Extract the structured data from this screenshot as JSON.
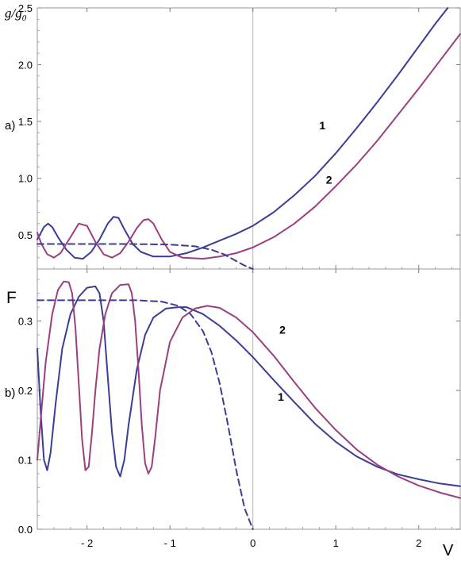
{
  "chart_data": [
    {
      "type": "line",
      "panel_label": "a)",
      "ylabel_main": "g/g",
      "ylabel_sub": "0",
      "xlim": [
        -2.6,
        2.5
      ],
      "ylim": [
        0.2,
        2.5
      ],
      "yticks": [
        0.5,
        1.0,
        1.5,
        2.0,
        2.5
      ],
      "ytick_labels": [
        "0.5",
        "1.0",
        "1.5",
        "2.0",
        "2.5"
      ],
      "series": [
        {
          "name": "1",
          "color": "#3b3d96",
          "dash": false,
          "x": [
            -2.6,
            -2.52,
            -2.47,
            -2.42,
            -2.35,
            -2.25,
            -2.15,
            -2.05,
            -1.95,
            -1.85,
            -1.75,
            -1.68,
            -1.62,
            -1.55,
            -1.45,
            -1.35,
            -1.2,
            -1.0,
            -0.8,
            -0.6,
            -0.4,
            -0.2,
            0.0,
            0.25,
            0.5,
            0.75,
            1.0,
            1.25,
            1.5,
            1.75,
            2.0,
            2.2,
            2.35
          ],
          "y": [
            0.46,
            0.57,
            0.6,
            0.57,
            0.48,
            0.37,
            0.3,
            0.29,
            0.35,
            0.46,
            0.6,
            0.66,
            0.65,
            0.55,
            0.42,
            0.35,
            0.31,
            0.31,
            0.34,
            0.39,
            0.45,
            0.51,
            0.58,
            0.7,
            0.85,
            1.02,
            1.22,
            1.44,
            1.67,
            1.91,
            2.16,
            2.36,
            2.5
          ]
        },
        {
          "name": "2",
          "color": "#9b3f7e",
          "dash": false,
          "x": [
            -2.6,
            -2.55,
            -2.48,
            -2.4,
            -2.32,
            -2.2,
            -2.1,
            -2.0,
            -1.9,
            -1.8,
            -1.7,
            -1.6,
            -1.5,
            -1.4,
            -1.32,
            -1.26,
            -1.2,
            -1.1,
            -1.0,
            -0.85,
            -0.6,
            -0.4,
            -0.2,
            0.0,
            0.25,
            0.5,
            0.75,
            1.0,
            1.25,
            1.5,
            1.75,
            2.0,
            2.25,
            2.5
          ],
          "y": [
            0.52,
            0.42,
            0.33,
            0.3,
            0.34,
            0.48,
            0.6,
            0.58,
            0.44,
            0.33,
            0.3,
            0.34,
            0.44,
            0.56,
            0.63,
            0.64,
            0.6,
            0.46,
            0.35,
            0.3,
            0.29,
            0.31,
            0.34,
            0.39,
            0.48,
            0.6,
            0.75,
            0.93,
            1.12,
            1.33,
            1.56,
            1.79,
            2.03,
            2.27
          ]
        },
        {
          "name": "",
          "color": "#3b3d96",
          "dash": true,
          "x": [
            -2.6,
            -2.0,
            -1.5,
            -1.0,
            -0.7,
            -0.5,
            -0.35,
            -0.2,
            -0.1,
            0.0
          ],
          "y": [
            0.42,
            0.42,
            0.42,
            0.415,
            0.4,
            0.37,
            0.33,
            0.27,
            0.23,
            0.2
          ]
        }
      ],
      "annotations": [
        {
          "text": "1",
          "x": 0.8,
          "y": 1.43
        },
        {
          "text": "2",
          "x": 0.88,
          "y": 0.95
        }
      ]
    },
    {
      "type": "line",
      "panel_label": "b)",
      "ylabel": "F",
      "xlabel": "V",
      "xlim": [
        -2.6,
        2.5
      ],
      "ylim": [
        0.0,
        0.375
      ],
      "xticks": [
        -2,
        -1,
        0,
        1,
        2
      ],
      "xtick_labels": [
        "- 2",
        "- 1",
        "0",
        "1",
        "2"
      ],
      "yticks": [
        0.0,
        0.1,
        0.2,
        0.3
      ],
      "ytick_labels": [
        "0.0",
        "0.1",
        "0.2",
        "0.3"
      ],
      "series": [
        {
          "name": "1",
          "color": "#3b3d96",
          "dash": false,
          "x": [
            -2.6,
            -2.56,
            -2.52,
            -2.48,
            -2.44,
            -2.38,
            -2.3,
            -2.2,
            -2.1,
            -2.0,
            -1.9,
            -1.85,
            -1.8,
            -1.75,
            -1.7,
            -1.65,
            -1.6,
            -1.55,
            -1.5,
            -1.4,
            -1.3,
            -1.2,
            -1.05,
            -0.9,
            -0.8,
            -0.6,
            -0.4,
            -0.2,
            0.0,
            0.25,
            0.5,
            0.75,
            1.0,
            1.25,
            1.5,
            1.75,
            2.0,
            2.25,
            2.5
          ],
          "y": [
            0.26,
            0.17,
            0.1,
            0.085,
            0.11,
            0.18,
            0.26,
            0.31,
            0.335,
            0.348,
            0.35,
            0.34,
            0.3,
            0.22,
            0.14,
            0.09,
            0.076,
            0.1,
            0.15,
            0.23,
            0.28,
            0.305,
            0.318,
            0.32,
            0.32,
            0.31,
            0.293,
            0.272,
            0.248,
            0.215,
            0.183,
            0.152,
            0.126,
            0.105,
            0.09,
            0.079,
            0.072,
            0.066,
            0.062
          ]
        },
        {
          "name": "2",
          "color": "#9b3f7e",
          "dash": false,
          "x": [
            -2.6,
            -2.55,
            -2.5,
            -2.42,
            -2.35,
            -2.28,
            -2.22,
            -2.18,
            -2.14,
            -2.1,
            -2.06,
            -2.02,
            -1.98,
            -1.94,
            -1.9,
            -1.85,
            -1.78,
            -1.7,
            -1.6,
            -1.5,
            -1.46,
            -1.42,
            -1.38,
            -1.34,
            -1.3,
            -1.26,
            -1.22,
            -1.18,
            -1.12,
            -1.0,
            -0.85,
            -0.7,
            -0.55,
            -0.4,
            -0.2,
            0.0,
            0.25,
            0.5,
            0.75,
            1.0,
            1.25,
            1.5,
            1.75,
            2.0,
            2.25,
            2.5
          ],
          "y": [
            0.1,
            0.17,
            0.24,
            0.31,
            0.345,
            0.357,
            0.356,
            0.34,
            0.29,
            0.21,
            0.13,
            0.085,
            0.09,
            0.14,
            0.2,
            0.26,
            0.31,
            0.34,
            0.352,
            0.353,
            0.34,
            0.3,
            0.23,
            0.15,
            0.095,
            0.08,
            0.09,
            0.13,
            0.2,
            0.27,
            0.305,
            0.318,
            0.322,
            0.319,
            0.305,
            0.284,
            0.25,
            0.212,
            0.175,
            0.143,
            0.115,
            0.093,
            0.076,
            0.063,
            0.053,
            0.045
          ]
        },
        {
          "name": "",
          "color": "#3b3d96",
          "dash": true,
          "x": [
            -2.6,
            -2.2,
            -1.8,
            -1.4,
            -1.1,
            -0.9,
            -0.75,
            -0.6,
            -0.5,
            -0.4,
            -0.3,
            -0.2,
            -0.1,
            0.0
          ],
          "y": [
            0.33,
            0.33,
            0.33,
            0.33,
            0.328,
            0.322,
            0.31,
            0.285,
            0.255,
            0.21,
            0.15,
            0.085,
            0.03,
            0.0
          ]
        }
      ],
      "annotations": [
        {
          "text": "2",
          "x": 0.32,
          "y": 0.282
        },
        {
          "text": "1",
          "x": 0.3,
          "y": 0.185
        }
      ]
    }
  ]
}
